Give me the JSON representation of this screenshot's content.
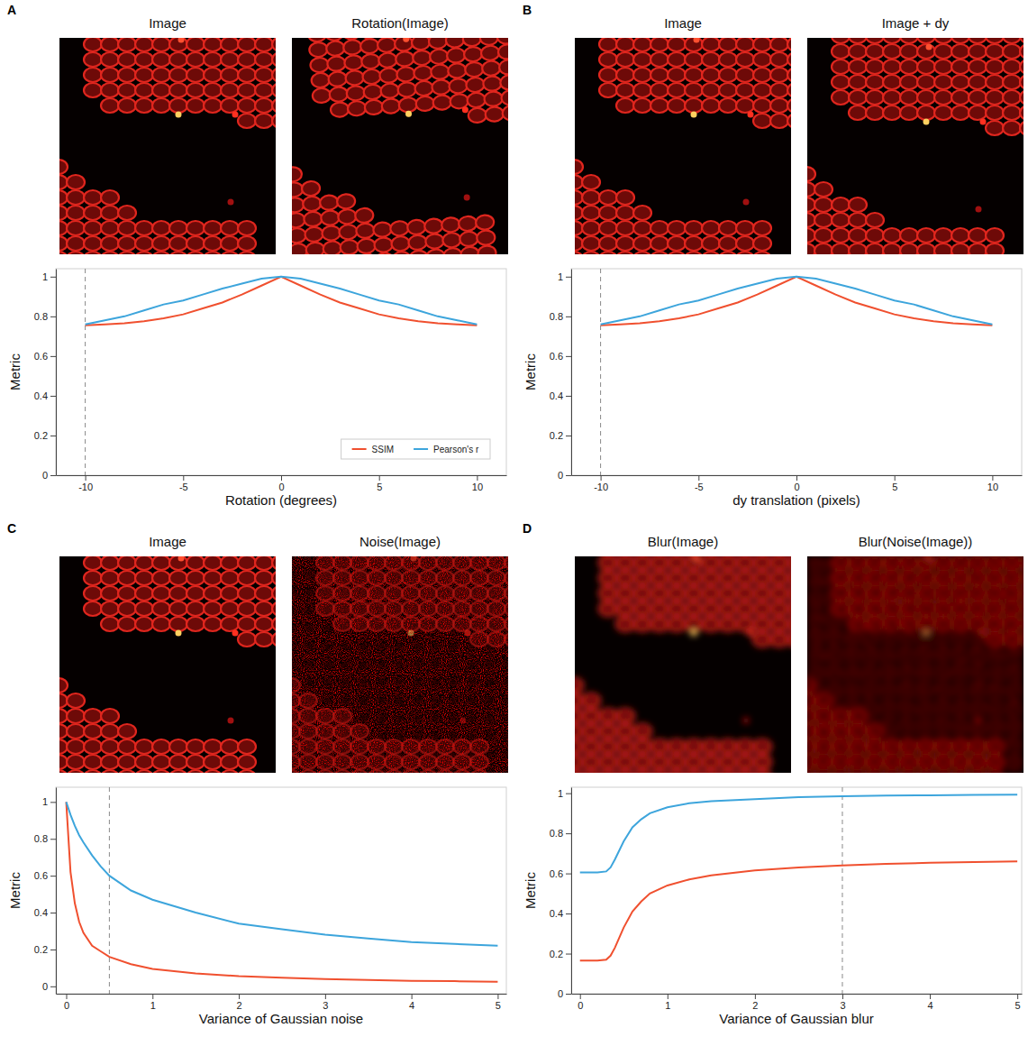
{
  "chart_data": [
    {
      "type": "line",
      "panel": "A",
      "images": [
        "Image",
        "Rotation(Image)"
      ],
      "x_label": "Rotation (degrees)",
      "y_label": "Metric",
      "x": [
        -10,
        -9,
        -8,
        -7,
        -6,
        -5,
        -4,
        -3,
        -2,
        -1,
        0,
        1,
        2,
        3,
        4,
        5,
        6,
        7,
        8,
        9,
        10
      ],
      "series": [
        {
          "name": "SSIM",
          "color": "#f0502f",
          "values": [
            0.755,
            0.76,
            0.765,
            0.775,
            0.79,
            0.81,
            0.84,
            0.87,
            0.91,
            0.955,
            1.0,
            0.955,
            0.91,
            0.87,
            0.84,
            0.81,
            0.79,
            0.775,
            0.765,
            0.76,
            0.755
          ]
        },
        {
          "name": "Pearson's r",
          "color": "#3da5dc",
          "values": [
            0.76,
            0.78,
            0.8,
            0.83,
            0.86,
            0.88,
            0.91,
            0.94,
            0.965,
            0.99,
            1.0,
            0.99,
            0.965,
            0.94,
            0.91,
            0.88,
            0.86,
            0.83,
            0.8,
            0.78,
            0.76
          ]
        }
      ],
      "reference_x": -10,
      "xlim": [
        -11.5,
        11.5
      ],
      "xticks": [
        -10,
        -5,
        0,
        5,
        10
      ],
      "ylim": [
        0,
        1.04
      ],
      "yticks": [
        0,
        0.2,
        0.4,
        0.6,
        0.8,
        1
      ],
      "legend": "bottom-right"
    },
    {
      "type": "line",
      "panel": "B",
      "images": [
        "Image",
        "Image + dy"
      ],
      "x_label": "dy translation (pixels)",
      "y_label": "Metric",
      "x": [
        -10,
        -9,
        -8,
        -7,
        -6,
        -5,
        -4,
        -3,
        -2,
        -1,
        0,
        1,
        2,
        3,
        4,
        5,
        6,
        7,
        8,
        9,
        10
      ],
      "series": [
        {
          "name": "SSIM",
          "color": "#f0502f",
          "values": [
            0.755,
            0.76,
            0.765,
            0.775,
            0.79,
            0.81,
            0.84,
            0.87,
            0.91,
            0.955,
            1.0,
            0.955,
            0.91,
            0.87,
            0.84,
            0.81,
            0.79,
            0.775,
            0.765,
            0.76,
            0.755
          ]
        },
        {
          "name": "Pearson's r",
          "color": "#3da5dc",
          "values": [
            0.76,
            0.78,
            0.8,
            0.83,
            0.86,
            0.88,
            0.91,
            0.94,
            0.965,
            0.99,
            1.0,
            0.99,
            0.965,
            0.94,
            0.91,
            0.88,
            0.86,
            0.83,
            0.8,
            0.78,
            0.76
          ]
        }
      ],
      "reference_x": -10,
      "xlim": [
        -11.5,
        11.5
      ],
      "xticks": [
        -10,
        -5,
        0,
        5,
        10
      ],
      "ylim": [
        0,
        1.04
      ],
      "yticks": [
        0,
        0.2,
        0.4,
        0.6,
        0.8,
        1
      ]
    },
    {
      "type": "line",
      "panel": "C",
      "images": [
        "Image",
        "Noise(Image)"
      ],
      "x_label": "Variance of Gaussian noise",
      "y_label": "Metric",
      "x": [
        0,
        0.05,
        0.1,
        0.15,
        0.2,
        0.3,
        0.4,
        0.5,
        0.75,
        1,
        1.5,
        2,
        2.5,
        3,
        3.5,
        4,
        4.5,
        5
      ],
      "series": [
        {
          "name": "SSIM",
          "color": "#f0502f",
          "values": [
            1.0,
            0.62,
            0.45,
            0.35,
            0.29,
            0.22,
            0.19,
            0.16,
            0.12,
            0.095,
            0.07,
            0.055,
            0.047,
            0.04,
            0.035,
            0.03,
            0.028,
            0.025
          ]
        },
        {
          "name": "Pearson's r",
          "color": "#3da5dc",
          "values": [
            1.0,
            0.93,
            0.87,
            0.82,
            0.78,
            0.71,
            0.65,
            0.6,
            0.52,
            0.47,
            0.4,
            0.34,
            0.31,
            0.28,
            0.26,
            0.24,
            0.23,
            0.22
          ]
        }
      ],
      "reference_x": 0.5,
      "xlim": [
        -0.12,
        5.1
      ],
      "xticks": [
        0,
        1,
        2,
        3,
        4,
        5
      ],
      "ylim": [
        -0.04,
        1.08
      ],
      "yticks": [
        0,
        0.2,
        0.4,
        0.6,
        0.8,
        1
      ]
    },
    {
      "type": "line",
      "panel": "D",
      "images": [
        "Blur(Image)",
        "Blur(Noise(Image))"
      ],
      "x_label": "Variance of Gaussian blur",
      "y_label": "Metric",
      "x": [
        0,
        0.1,
        0.2,
        0.3,
        0.35,
        0.4,
        0.5,
        0.6,
        0.7,
        0.8,
        1,
        1.25,
        1.5,
        2,
        2.5,
        3,
        3.5,
        4,
        4.5,
        5
      ],
      "series": [
        {
          "name": "SSIM",
          "color": "#f0502f",
          "values": [
            0.165,
            0.165,
            0.165,
            0.17,
            0.19,
            0.23,
            0.33,
            0.41,
            0.46,
            0.5,
            0.54,
            0.57,
            0.59,
            0.615,
            0.63,
            0.64,
            0.648,
            0.653,
            0.657,
            0.66
          ]
        },
        {
          "name": "Pearson's r",
          "color": "#3da5dc",
          "values": [
            0.605,
            0.605,
            0.605,
            0.61,
            0.63,
            0.67,
            0.76,
            0.83,
            0.87,
            0.9,
            0.93,
            0.95,
            0.96,
            0.97,
            0.98,
            0.985,
            0.988,
            0.99,
            0.992,
            0.993
          ]
        }
      ],
      "reference_x": 3,
      "xlim": [
        -0.1,
        5.05
      ],
      "xticks": [
        0,
        1,
        2,
        3,
        4,
        5
      ],
      "ylim": [
        0,
        1.03
      ],
      "yticks": [
        0,
        0.2,
        0.4,
        0.6,
        0.8,
        1
      ]
    }
  ]
}
